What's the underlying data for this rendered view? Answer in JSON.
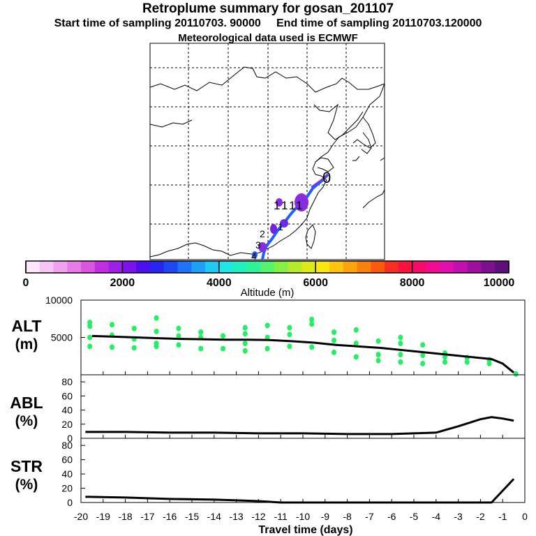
{
  "header": {
    "title": "Retroplume summary for gosan_201107",
    "sampling_line": "Start time of sampling 20110703. 90000     End time of sampling 20110703.120000",
    "met_line": "Meteorological data used is ECMWF"
  },
  "colors": {
    "trajectory_points": "#22ee66",
    "line": "#000000",
    "track_purple": "#8a2be2",
    "track_blue": "#1f5fff"
  },
  "map": {
    "description_labels": [
      "0",
      "1",
      "1",
      "1",
      "1",
      "1",
      "2",
      "3",
      "4"
    ],
    "origin_label": "0"
  },
  "colorbar": {
    "tick_labels": [
      "0",
      "2000",
      "4000",
      "6000",
      "8000",
      "10000"
    ],
    "label": "Altitude (m)",
    "colors": [
      "#fde6fb",
      "#f7c5f5",
      "#f0a2ef",
      "#e87be8",
      "#dc55df",
      "#c02ee0",
      "#9f1fe6",
      "#7d12ec",
      "#4a10f0",
      "#2824f0",
      "#1d47f5",
      "#1e72f7",
      "#1ea0f7",
      "#1ec9f3",
      "#1ee7e6",
      "#1ef0c0",
      "#2cf29a",
      "#55f270",
      "#85ef45",
      "#b4ec2a",
      "#dcea18",
      "#f9e80e",
      "#fdc60c",
      "#fda30c",
      "#fc800c",
      "#fa5a0e",
      "#f52e20",
      "#ff1040",
      "#f90a6a",
      "#f20a92",
      "#e20fb0",
      "#c40fb0",
      "#a0109f",
      "#7e1090",
      "#5e0f7a"
    ]
  },
  "chart_data": [
    {
      "type": "scatter",
      "ylabel": "ALT\n(m)",
      "yticks": [
        "10000",
        "5000"
      ],
      "ylim": [
        0,
        10000
      ],
      "xlim": [
        -20,
        0
      ],
      "line": {
        "x": [
          -19.5,
          -18.5,
          -17.5,
          -16.5,
          -15.5,
          -14.5,
          -13.5,
          -12.5,
          -11.5,
          -10.5,
          -9.5,
          -8.5,
          -7.5,
          -6.5,
          -5.5,
          -4.5,
          -3.5,
          -2.5,
          -1.5,
          -1.0,
          -0.5
        ],
        "y": [
          5200,
          5100,
          5000,
          4900,
          4800,
          4750,
          4700,
          4700,
          4650,
          4500,
          4300,
          4000,
          3800,
          3600,
          3300,
          3000,
          2700,
          2400,
          2100,
          1500,
          300
        ]
      },
      "points": [
        {
          "x": -19.6,
          "y": 7000
        },
        {
          "x": -19.6,
          "y": 6500
        },
        {
          "x": -19.6,
          "y": 5000
        },
        {
          "x": -19.6,
          "y": 3800
        },
        {
          "x": -18.6,
          "y": 6700
        },
        {
          "x": -18.6,
          "y": 5300
        },
        {
          "x": -18.6,
          "y": 3700
        },
        {
          "x": -17.6,
          "y": 6200
        },
        {
          "x": -17.6,
          "y": 4800
        },
        {
          "x": -17.6,
          "y": 3600
        },
        {
          "x": -16.6,
          "y": 7600
        },
        {
          "x": -16.6,
          "y": 5800
        },
        {
          "x": -16.6,
          "y": 4200
        },
        {
          "x": -16.6,
          "y": 3800
        },
        {
          "x": -15.6,
          "y": 6200
        },
        {
          "x": -15.6,
          "y": 5200
        },
        {
          "x": -15.6,
          "y": 4000
        },
        {
          "x": -14.6,
          "y": 5700
        },
        {
          "x": -14.6,
          "y": 5000
        },
        {
          "x": -14.6,
          "y": 3500
        },
        {
          "x": -13.6,
          "y": 5200
        },
        {
          "x": -13.6,
          "y": 3500
        },
        {
          "x": -12.6,
          "y": 6300
        },
        {
          "x": -12.6,
          "y": 5500
        },
        {
          "x": -12.6,
          "y": 4200
        },
        {
          "x": -12.6,
          "y": 3200
        },
        {
          "x": -11.6,
          "y": 6600
        },
        {
          "x": -11.6,
          "y": 5000
        },
        {
          "x": -11.6,
          "y": 3500
        },
        {
          "x": -10.6,
          "y": 6300
        },
        {
          "x": -10.6,
          "y": 5400
        },
        {
          "x": -10.6,
          "y": 3800
        },
        {
          "x": -9.6,
          "y": 7400
        },
        {
          "x": -9.6,
          "y": 6800
        },
        {
          "x": -9.6,
          "y": 3700
        },
        {
          "x": -8.6,
          "y": 5700
        },
        {
          "x": -8.6,
          "y": 4600
        },
        {
          "x": -8.6,
          "y": 3000
        },
        {
          "x": -7.6,
          "y": 6000
        },
        {
          "x": -7.6,
          "y": 4200
        },
        {
          "x": -7.6,
          "y": 2400
        },
        {
          "x": -6.6,
          "y": 4500
        },
        {
          "x": -6.6,
          "y": 2700
        },
        {
          "x": -6.6,
          "y": 1900
        },
        {
          "x": -5.6,
          "y": 5000
        },
        {
          "x": -5.6,
          "y": 4200
        },
        {
          "x": -5.6,
          "y": 2700
        },
        {
          "x": -5.6,
          "y": 1700
        },
        {
          "x": -4.6,
          "y": 4000
        },
        {
          "x": -4.6,
          "y": 2600
        },
        {
          "x": -4.6,
          "y": 1500
        },
        {
          "x": -3.6,
          "y": 2900
        },
        {
          "x": -3.6,
          "y": 2400
        },
        {
          "x": -3.6,
          "y": 1700
        },
        {
          "x": -2.6,
          "y": 2300
        },
        {
          "x": -2.6,
          "y": 1700
        },
        {
          "x": -1.6,
          "y": 2000
        },
        {
          "x": -1.6,
          "y": 1500
        },
        {
          "x": -0.4,
          "y": 100
        }
      ]
    },
    {
      "type": "line",
      "ylabel": "ABL\n(%)",
      "yticks": [
        "80",
        "60",
        "40",
        "20",
        "0"
      ],
      "ylim": [
        0,
        90
      ],
      "xlim": [
        -20,
        0
      ],
      "x": [
        -19.8,
        -18,
        -16,
        -14,
        -12,
        -10,
        -8,
        -6,
        -4,
        -3,
        -2,
        -1.5,
        -1,
        -0.5
      ],
      "y": [
        9,
        9,
        8,
        8,
        7,
        7,
        6,
        6,
        8,
        17,
        27,
        30,
        28,
        25
      ]
    },
    {
      "type": "line",
      "ylabel": "STR\n(%)",
      "yticks": [
        "80",
        "60",
        "40",
        "20",
        "0"
      ],
      "ylim": [
        0,
        90
      ],
      "xlim": [
        -20,
        0
      ],
      "x": [
        -19.8,
        -18,
        -16,
        -14,
        -13,
        -12,
        -11,
        -2,
        -1.5,
        -0.5
      ],
      "y": [
        8,
        7,
        5,
        4,
        3,
        2,
        0,
        0,
        0,
        33
      ],
      "xticks": [
        "-20",
        "-19",
        "-18",
        "-17",
        "-16",
        "-15",
        "-14",
        "-13",
        "-12",
        "-11",
        "-10",
        "-9",
        "-8",
        "-7",
        "-6",
        "-5",
        "-4",
        "-3",
        "-2",
        "-1",
        "0"
      ],
      "xlabel": "Travel time (days)"
    }
  ]
}
